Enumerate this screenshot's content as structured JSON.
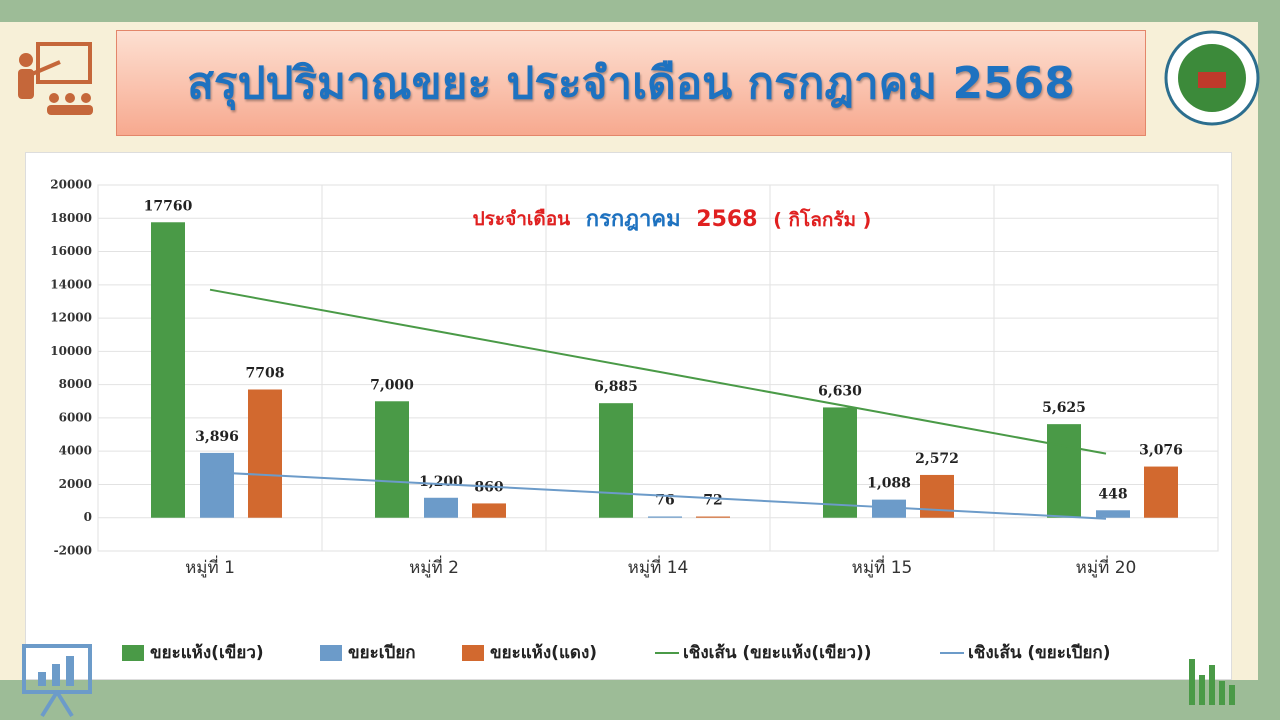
{
  "header": {
    "title": "สรุปปริมาณขยะ ประจำเดือน กรกฎาคม 2568"
  },
  "chart_data": {
    "type": "bar",
    "title_parts": [
      "ประจำเดือน",
      "กรกฎาคม",
      "2568",
      "( กิโลกรัม )"
    ],
    "categories": [
      "หมู่ที่ 1",
      "หมู่ที่ 2",
      "หมู่ที่ 14",
      "หมู่ที่ 15",
      "หมู่ที่ 20"
    ],
    "series": [
      {
        "name": "ขยะแห้ง(เขียว)",
        "type": "bar",
        "color": "#4a9a47",
        "values": [
          17760,
          7000,
          6885,
          6630,
          5625
        ],
        "value_labels": [
          "17760",
          "7,000",
          "6,885",
          "6,630",
          "5,625"
        ]
      },
      {
        "name": "ขยะเปียก",
        "type": "bar",
        "color": "#6c9bc9",
        "values": [
          3896,
          1200,
          76,
          1088,
          448
        ],
        "value_labels": [
          "3,896",
          "1,200",
          "76",
          "1,088",
          "448"
        ]
      },
      {
        "name": "ขยะแห้ง(แดง)",
        "type": "bar",
        "color": "#d2692f",
        "values": [
          7708,
          860,
          72,
          2572,
          3076
        ],
        "value_labels": [
          "7708",
          "860",
          "72",
          "2,572",
          "3,076"
        ]
      },
      {
        "name": "เชิงเส้น (ขยะแห้ง(เขียว))",
        "type": "line",
        "color": "#4a9a47",
        "values": [
          13708,
          11244,
          8780,
          6316,
          3852
        ]
      },
      {
        "name": "เชิงเส้น (ขยะเปียก)",
        "type": "line",
        "color": "#6c9bc9",
        "values": [
          2743,
          2042,
          1342,
          641,
          -60
        ]
      }
    ],
    "ylim": [
      -2000,
      20000
    ],
    "yticks": [
      -2000,
      0,
      2000,
      4000,
      6000,
      8000,
      10000,
      12000,
      14000,
      16000,
      18000,
      20000
    ],
    "grid": true
  }
}
